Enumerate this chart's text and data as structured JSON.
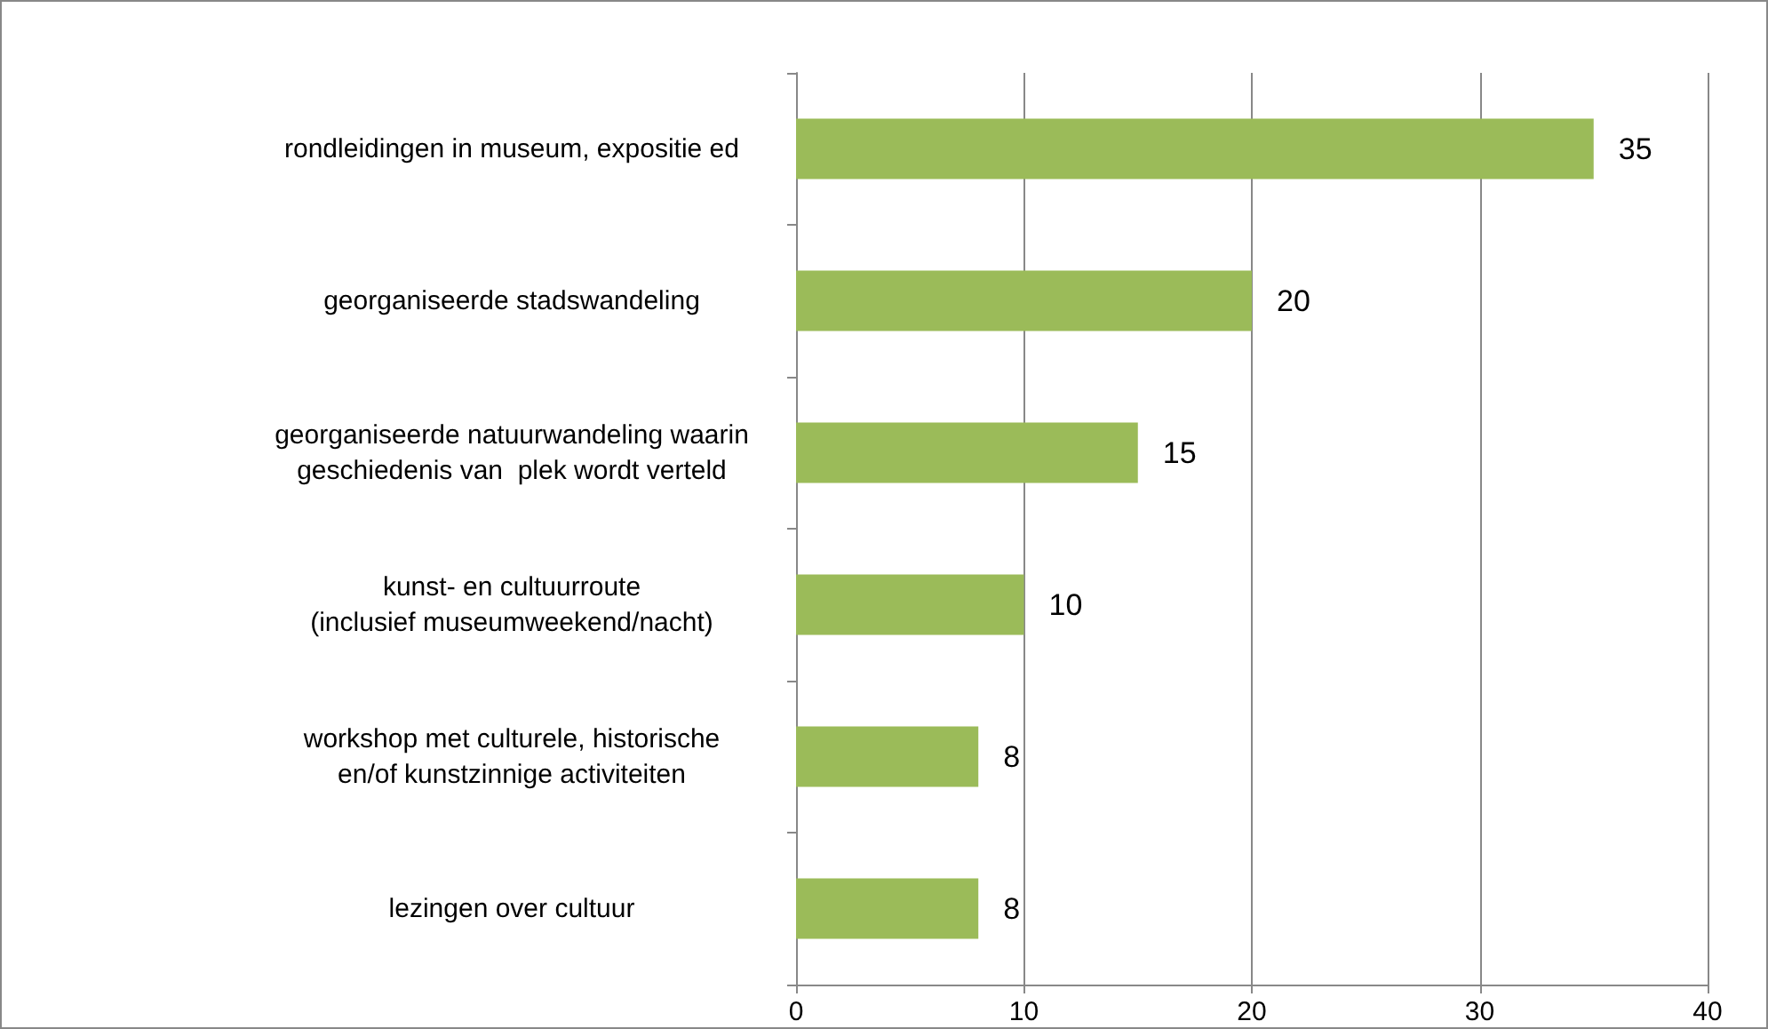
{
  "chart_data": {
    "type": "bar",
    "orientation": "horizontal",
    "categories": [
      "rondleidingen in museum, expositie ed",
      "georganiseerde stadswandeling",
      "georganiseerde natuurwandeling waarin\ngeschiedenis van  plek wordt verteld",
      "kunst- en cultuurroute\n(inclusief museumweekend/nacht)",
      "workshop met culturele, historische\nen/of kunstzinnige activiteiten",
      "lezingen over cultuur"
    ],
    "values": [
      35,
      20,
      15,
      10,
      8,
      8
    ],
    "color": "#9bbb59",
    "xlim": [
      0,
      40
    ],
    "xticks": [
      0,
      10,
      20,
      30,
      40
    ],
    "grid": "x",
    "data_labels": true
  }
}
